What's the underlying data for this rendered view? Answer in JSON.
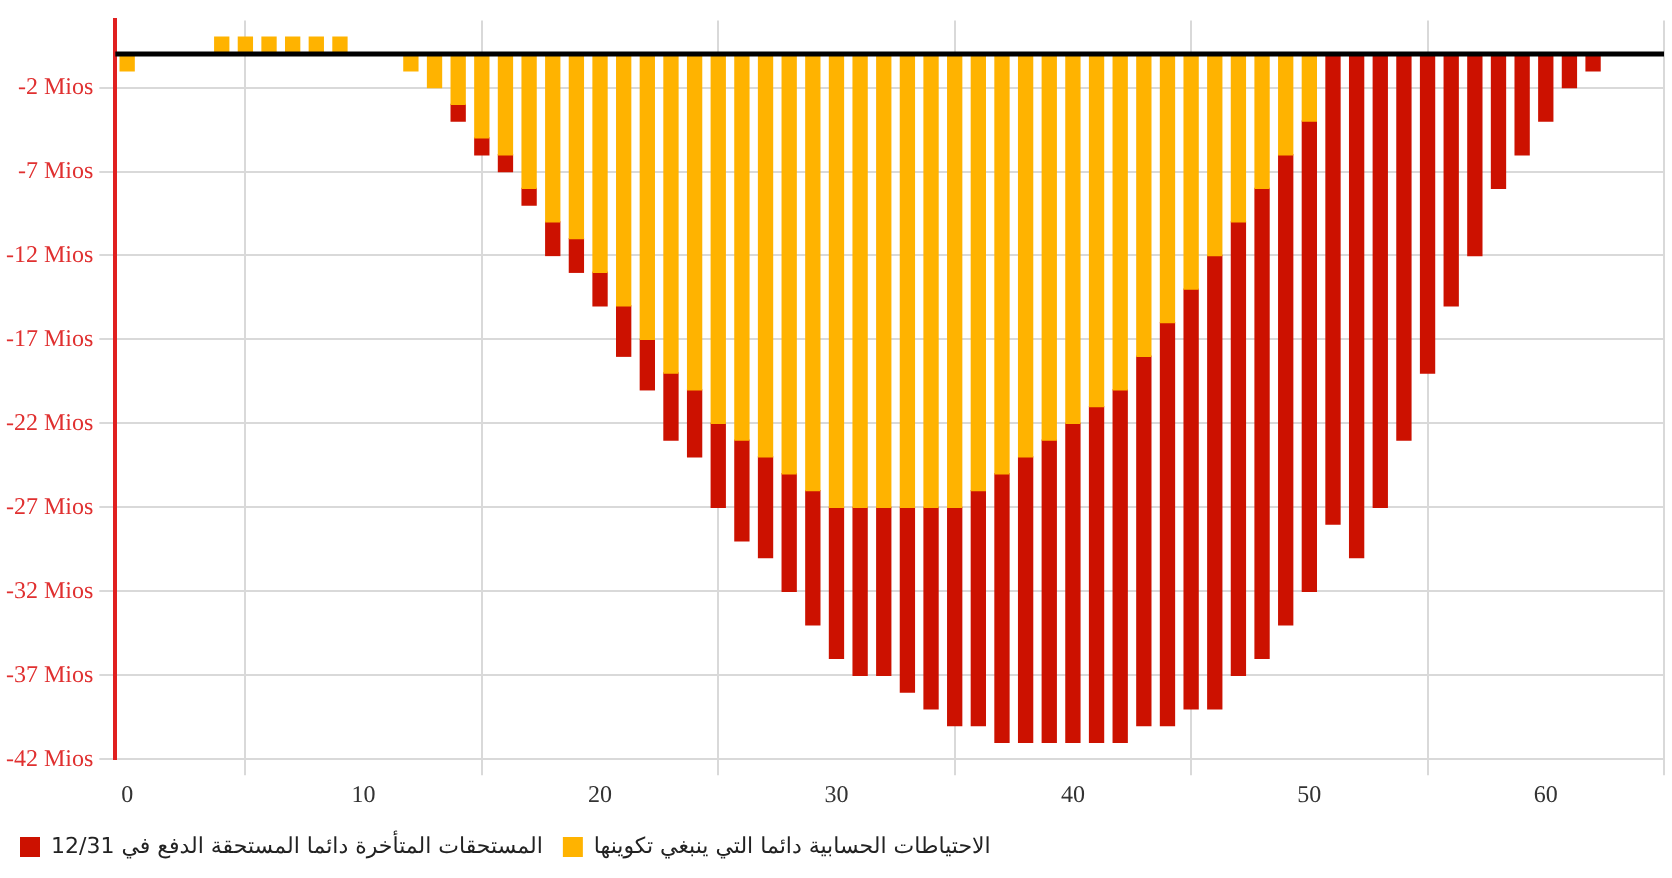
{
  "chart_data": {
    "type": "bar",
    "x": [
      0,
      1,
      2,
      3,
      4,
      5,
      6,
      7,
      8,
      9,
      10,
      11,
      12,
      13,
      14,
      15,
      16,
      17,
      18,
      19,
      20,
      21,
      22,
      23,
      24,
      25,
      26,
      27,
      28,
      29,
      30,
      31,
      32,
      33,
      34,
      35,
      36,
      37,
      38,
      39,
      40,
      41,
      42,
      43,
      44,
      45,
      46,
      47,
      48,
      49,
      50,
      51,
      52,
      53,
      54,
      55,
      56,
      57,
      58,
      59,
      60,
      61,
      62
    ],
    "series": [
      {
        "name": "الاحتياطات الحسابية دائما التي ينبغي تكوينها",
        "color": "#ffb300",
        "values": [
          -1,
          null,
          null,
          null,
          1,
          1,
          1,
          1,
          1,
          1,
          null,
          null,
          -1,
          -2,
          -3,
          -5,
          -6,
          -8,
          -10,
          -11,
          -13,
          -15,
          -17,
          -19,
          -20,
          -22,
          -23,
          -24,
          -25,
          -26,
          -27,
          -27,
          -27,
          -27,
          -27,
          -27,
          -26,
          -25,
          -24,
          -23,
          -22,
          -21,
          -20,
          -18,
          -16,
          -14,
          -12,
          -10,
          -8,
          -6,
          -4,
          null,
          null,
          null,
          null,
          null,
          null,
          null,
          null,
          null,
          null,
          null,
          null
        ]
      },
      {
        "name": "المستحقات المتأخرة دائما المستحقة الدفع في 12/31",
        "color": "#cc1100",
        "values": [
          null,
          null,
          null,
          null,
          null,
          null,
          null,
          null,
          null,
          null,
          null,
          null,
          null,
          null,
          -1,
          -1,
          -1,
          -1,
          -2,
          -2,
          -2,
          -3,
          -3,
          -4,
          -4,
          -5,
          -6,
          -6,
          -7,
          -8,
          -9,
          -10,
          -10,
          -11,
          -12,
          -13,
          -14,
          -16,
          -17,
          -18,
          -19,
          -20,
          -21,
          -22,
          -24,
          -25,
          -27,
          -27,
          -28,
          -28,
          -28,
          -28,
          -30,
          -27,
          -23,
          -19,
          -15,
          -12,
          -8,
          -6,
          -4,
          -2,
          -1
        ]
      }
    ],
    "stacked": true,
    "xlim": [
      -0.5,
      65
    ],
    "xticks": [
      0,
      10,
      20,
      30,
      40,
      50,
      60
    ],
    "ylim": [
      -42,
      2
    ],
    "yticks": [
      {
        "value": -2,
        "label": "-2 Mios"
      },
      {
        "value": -7,
        "label": "-7 Mios"
      },
      {
        "value": -12,
        "label": "-12 Mios"
      },
      {
        "value": -17,
        "label": "-17 Mios"
      },
      {
        "value": -22,
        "label": "-22 Mios"
      },
      {
        "value": -27,
        "label": "-27 Mios"
      },
      {
        "value": -32,
        "label": "-32 Mios"
      },
      {
        "value": -37,
        "label": "-37 Mios"
      },
      {
        "value": -42,
        "label": "-42 Mios"
      }
    ],
    "ref_lines": [
      {
        "axis": "y",
        "value": 0,
        "color": "#000000"
      }
    ],
    "grid": true,
    "legend": "bottom left"
  }
}
